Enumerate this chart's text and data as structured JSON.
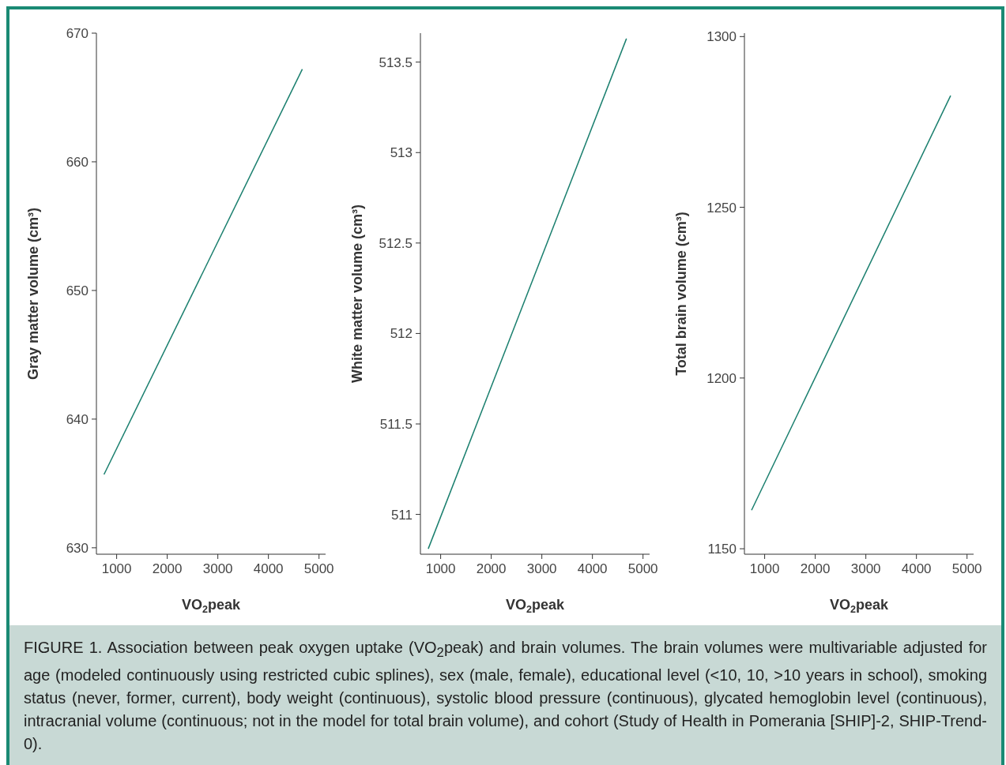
{
  "chart_data": [
    {
      "type": "line",
      "xlabel": "VO$_{2}$peak",
      "ylabel": "Gray matter volume (cm³)",
      "x": [
        750,
        4670
      ],
      "xlim": [
        600,
        5130
      ],
      "xticks": [
        1000,
        2000,
        3000,
        4000,
        5000
      ],
      "ylim": [
        629.5,
        670
      ],
      "yticks": [
        630,
        640,
        650,
        660,
        670
      ],
      "series": [
        {
          "color": "#1a7f6e",
          "values": [
            635.7,
            667.2
          ]
        }
      ]
    },
    {
      "type": "line",
      "xlabel": "VO$_{2}$peak",
      "ylabel": "White matter volume (cm³)",
      "x": [
        755,
        4673
      ],
      "xlim": [
        600,
        5130
      ],
      "xticks": [
        1000,
        2000,
        3000,
        4000,
        5000
      ],
      "ylim": [
        510.78,
        513.66
      ],
      "yticks": [
        511,
        511.5,
        512,
        512.5,
        513,
        513.5
      ],
      "series": [
        {
          "color": "#1a7f6e",
          "values": [
            510.81,
            513.63
          ]
        }
      ]
    },
    {
      "type": "line",
      "xlabel": "VO$_{2}$peak",
      "ylabel": "Total brain volume (cm³)",
      "x": [
        741,
        4676
      ],
      "xlim": [
        600,
        5130
      ],
      "xticks": [
        1000,
        2000,
        3000,
        4000,
        5000
      ],
      "ylim": [
        1148.4,
        1301
      ],
      "yticks": [
        1150,
        1200,
        1250,
        1300
      ],
      "series": [
        {
          "color": "#1a7f6e",
          "values": [
            1161.3,
            1282.7
          ]
        }
      ],
      "annotations": [
        "FIGURE 1. Association between peak oxygen uptake (VO$_{2}$peak) and brain volumes. The brain volumes were multivariable adjusted for age (modeled continuously using restricted cubic splines), sex (male, female), educational level (<10, 10, >10 years in school), smoking status (never, former, current), body weight (continuous), systolic blood pressure (continuous), glycated hemoglobin level (continuous), intracranial volume (continuous; not in the model for total brain volume), and cohort (Study of Health in Pomerania [SHIP]-2, SHIP-Trend-0)."
      ]
    }
  ]
}
